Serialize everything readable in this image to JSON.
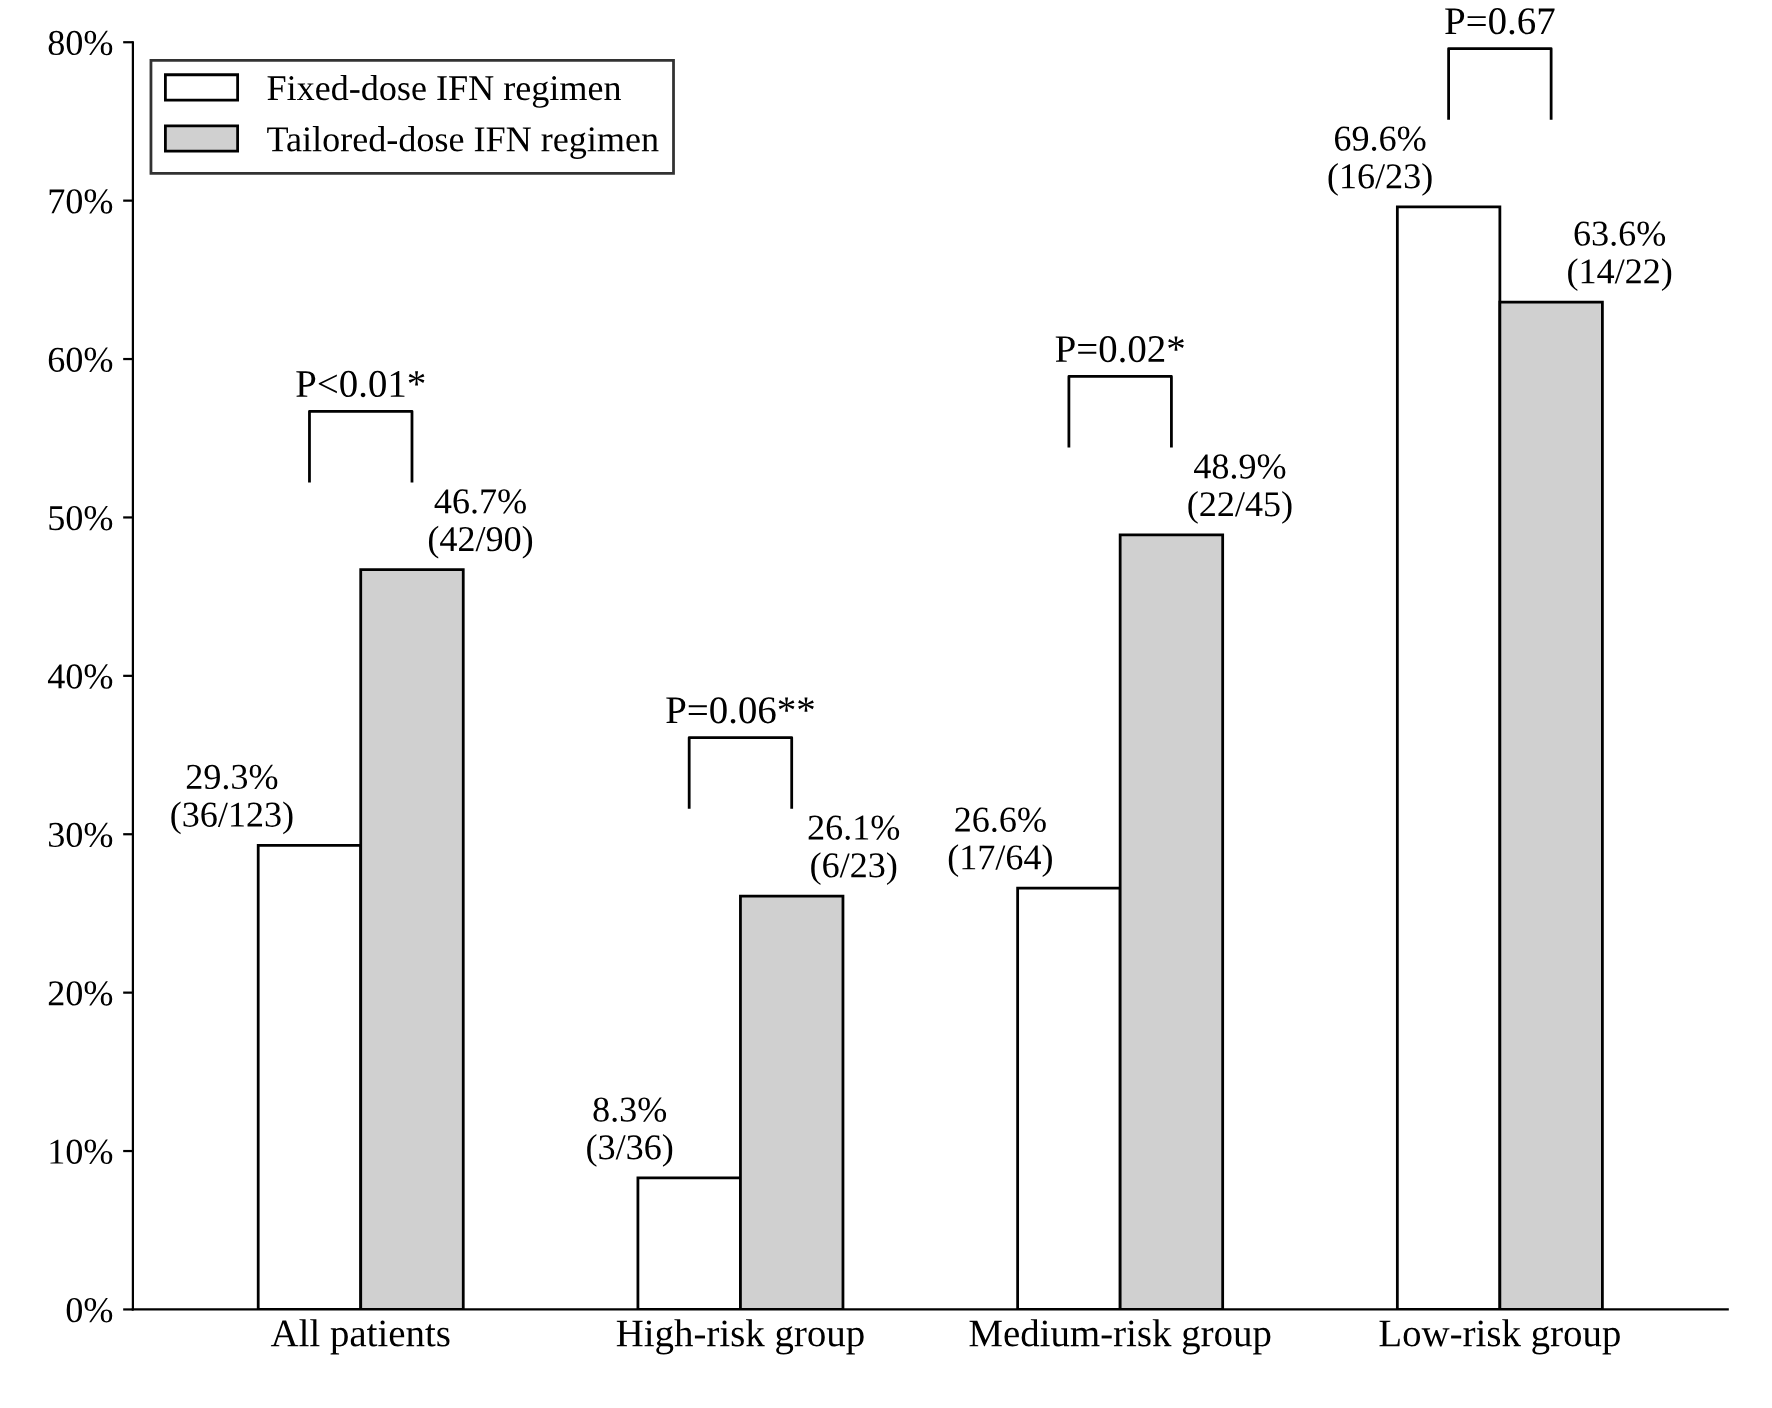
{
  "chart_data": {
    "type": "bar",
    "categories": [
      "All patients",
      "High-risk group",
      "Medium-risk group",
      "Low-risk group"
    ],
    "series": [
      {
        "name": "Fixed-dose IFN regimen",
        "color": "#ffffff",
        "values": [
          29.3,
          8.3,
          26.6,
          69.6
        ],
        "value_labels": [
          "29.3%\n(36/123)",
          "8.3%\n(3/36)",
          "26.6%\n(17/64)",
          "69.6%\n(16/23)"
        ]
      },
      {
        "name": "Tailored-dose IFN regimen",
        "color": "#d0d0d0",
        "values": [
          46.7,
          26.1,
          48.9,
          63.6
        ],
        "value_labels": [
          "46.7%\n(42/90)",
          "26.1%\n(6/23)",
          "48.9%\n(22/45)",
          "63.6%\n(14/22)"
        ]
      }
    ],
    "ylim": [
      0,
      80
    ],
    "yticks": [
      {
        "value": 0,
        "label": "0%"
      },
      {
        "value": 10,
        "label": "10%"
      },
      {
        "value": 20,
        "label": "20%"
      },
      {
        "value": 30,
        "label": "30%"
      },
      {
        "value": 40,
        "label": "40%"
      },
      {
        "value": 50,
        "label": "50%"
      },
      {
        "value": 60,
        "label": "60%"
      },
      {
        "value": 70,
        "label": "70%"
      },
      {
        "value": 80,
        "label": "80%"
      }
    ],
    "annotations": [
      "P<0.01*",
      "P=0.06**",
      "P=0.02*",
      "P=0.67"
    ],
    "legend": "top left",
    "grid": false
  }
}
